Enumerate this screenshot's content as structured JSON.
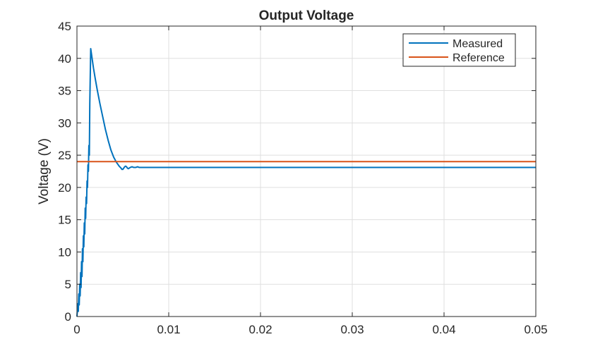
{
  "chart_data": {
    "type": "line",
    "title": "Output Voltage",
    "xlabel": "",
    "ylabel": "Voltage (V)",
    "xlim": [
      0,
      0.05
    ],
    "ylim": [
      0,
      45
    ],
    "xticks": [
      0,
      0.01,
      0.02,
      0.03,
      0.04,
      0.05
    ],
    "xtick_labels": [
      "0",
      "0.01",
      "0.02",
      "0.03",
      "0.04",
      "0.05"
    ],
    "yticks": [
      0,
      5,
      10,
      15,
      20,
      25,
      30,
      35,
      40,
      45
    ],
    "ytick_labels": [
      "0",
      "5",
      "10",
      "15",
      "20",
      "25",
      "30",
      "35",
      "40",
      "45"
    ],
    "grid": true,
    "legend": "top-right",
    "series": [
      {
        "name": "Measured",
        "color": "#0072BD",
        "x": [
          0,
          0.0001,
          0.00015,
          0.0002,
          0.00025,
          0.0003,
          0.00035,
          0.0004,
          0.00045,
          0.0005,
          0.00055,
          0.0006,
          0.00065,
          0.0007,
          0.00075,
          0.0008,
          0.00085,
          0.0009,
          0.00095,
          0.001,
          0.00105,
          0.0011,
          0.00115,
          0.0012,
          0.00125,
          0.0013,
          0.00135,
          0.0014,
          0.0015,
          0.0016,
          0.0018,
          0.002,
          0.0022,
          0.0025,
          0.0028,
          0.0031,
          0.0034,
          0.0037,
          0.004,
          0.0043,
          0.0046,
          0.0048,
          0.0049,
          0.005,
          0.0051,
          0.0052,
          0.0053,
          0.0054,
          0.0055,
          0.0056,
          0.0057,
          0.0058,
          0.006,
          0.0062,
          0.0064,
          0.0066,
          0.0068,
          0.007,
          0.0075,
          0.008,
          0.01,
          0.015,
          0.02,
          0.025,
          0.03,
          0.035,
          0.04,
          0.045,
          0.05
        ],
        "y": [
          0,
          2,
          0.8,
          3.5,
          1.8,
          5,
          3.2,
          6.8,
          4.5,
          8.5,
          6.2,
          10.5,
          8.5,
          12.5,
          10.8,
          14.5,
          12.8,
          16.8,
          15.2,
          18.5,
          17.5,
          21,
          20,
          23.5,
          22.5,
          26.5,
          25,
          33,
          41.5,
          40.5,
          38.5,
          36.8,
          35.2,
          33,
          31,
          29,
          27.3,
          25.8,
          24.7,
          23.9,
          23.3,
          23,
          22.8,
          22.8,
          23,
          23.2,
          23.3,
          23.2,
          23,
          22.9,
          23,
          23.1,
          23.2,
          23.1,
          23.1,
          23.2,
          23.1,
          23.1,
          23.1,
          23.1,
          23.1,
          23.1,
          23.1,
          23.1,
          23.1,
          23.1,
          23.1,
          23.1,
          23.1
        ]
      },
      {
        "name": "Reference",
        "color": "#D95319",
        "x": [
          0,
          0.05
        ],
        "y": [
          24,
          24
        ]
      }
    ]
  }
}
